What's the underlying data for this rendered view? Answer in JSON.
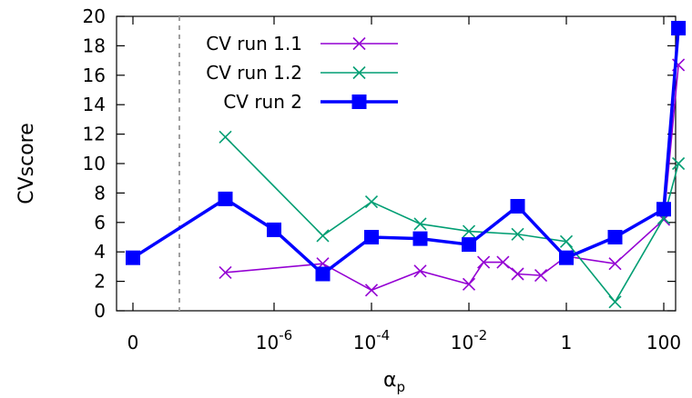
{
  "chart_data": {
    "type": "line",
    "title": "",
    "xlabel": "α",
    "xlabel_sub": "p",
    "ylabel": "CVscore",
    "x_scale": "log (with broken axis at 0)",
    "ylim": [
      0,
      20
    ],
    "y_ticks": [
      0,
      2,
      4,
      6,
      8,
      10,
      12,
      14,
      16,
      18,
      20
    ],
    "x_ticks": [
      {
        "label": "0",
        "value": 0
      },
      {
        "label": "10",
        "sup": "-6",
        "value": 1e-06
      },
      {
        "label": "10",
        "sup": "-4",
        "value": 0.0001
      },
      {
        "label": "10",
        "sup": "-2",
        "value": 0.01
      },
      {
        "label": "1",
        "value": 1
      },
      {
        "label": "100",
        "value": 100
      }
    ],
    "grid": false,
    "legend_position": "top-center",
    "series": [
      {
        "name": "CV run 1.1",
        "color": "#9400d3",
        "marker": "x",
        "points": [
          {
            "x": 1e-07,
            "y": 2.6
          },
          {
            "x": 1e-05,
            "y": 3.2
          },
          {
            "x": 0.0001,
            "y": 1.4
          },
          {
            "x": 0.001,
            "y": 2.7
          },
          {
            "x": 0.01,
            "y": 1.8
          },
          {
            "x": 0.02,
            "y": 3.3
          },
          {
            "x": 0.05,
            "y": 3.3
          },
          {
            "x": 0.1,
            "y": 2.5
          },
          {
            "x": 0.3,
            "y": 2.4
          },
          {
            "x": 1,
            "y": 3.7
          },
          {
            "x": 10,
            "y": 3.2
          },
          {
            "x": 100,
            "y": 6.2
          },
          {
            "x": 200,
            "y": 16.7
          }
        ]
      },
      {
        "name": "CV run 1.2",
        "color": "#009e73",
        "marker": "x",
        "points": [
          {
            "x": 1e-07,
            "y": 11.8
          },
          {
            "x": 1e-05,
            "y": 5.1
          },
          {
            "x": 0.0001,
            "y": 7.4
          },
          {
            "x": 0.001,
            "y": 5.9
          },
          {
            "x": 0.01,
            "y": 5.4
          },
          {
            "x": 0.1,
            "y": 5.2
          },
          {
            "x": 1,
            "y": 4.7
          },
          {
            "x": 10,
            "y": 0.6
          },
          {
            "x": 100,
            "y": 6.3
          },
          {
            "x": 200,
            "y": 10.0
          }
        ]
      },
      {
        "name": "CV run 2",
        "color": "#0000ff",
        "marker": "square",
        "points": [
          {
            "x": 0,
            "y": 3.6
          },
          {
            "x": 1e-07,
            "y": 7.6
          },
          {
            "x": 1e-06,
            "y": 5.5
          },
          {
            "x": 1e-05,
            "y": 2.5
          },
          {
            "x": 0.0001,
            "y": 5.0
          },
          {
            "x": 0.001,
            "y": 4.9
          },
          {
            "x": 0.01,
            "y": 4.5
          },
          {
            "x": 0.1,
            "y": 7.1
          },
          {
            "x": 1,
            "y": 3.6
          },
          {
            "x": 10,
            "y": 5.0
          },
          {
            "x": 100,
            "y": 6.9
          },
          {
            "x": 200,
            "y": 19.2
          }
        ]
      }
    ]
  }
}
